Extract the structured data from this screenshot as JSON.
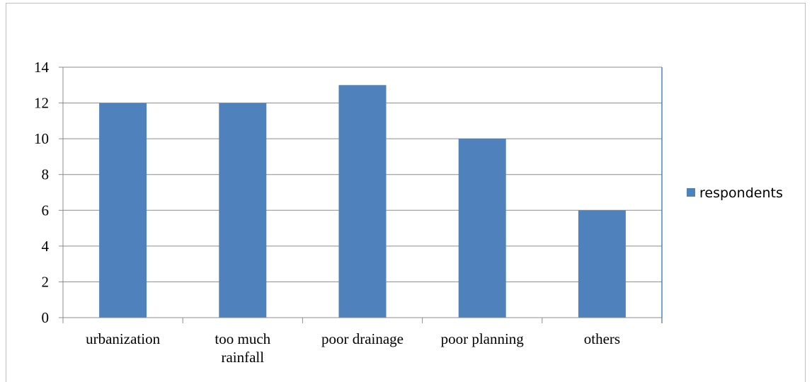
{
  "chart_data": {
    "type": "bar",
    "categories": [
      "urbanization",
      "too much rainfall",
      "poor drainage",
      "poor planning",
      "others"
    ],
    "category_lines": [
      [
        "urbanization"
      ],
      [
        "too much",
        "rainfall"
      ],
      [
        "poor drainage"
      ],
      [
        "poor planning"
      ],
      [
        "others"
      ]
    ],
    "series": [
      {
        "name": "respondents",
        "values": [
          12,
          12,
          13,
          10,
          6
        ]
      }
    ],
    "yticks": [
      "0",
      "2",
      "4",
      "6",
      "8",
      "10",
      "12",
      "14"
    ],
    "ylim": [
      0,
      14
    ],
    "grid": true,
    "legend": "right",
    "colors": {
      "bar": "#4f81bd",
      "grid": "#8c8c8c",
      "frame": "#bfbfbf",
      "right_axis": "#4f81bd"
    }
  }
}
